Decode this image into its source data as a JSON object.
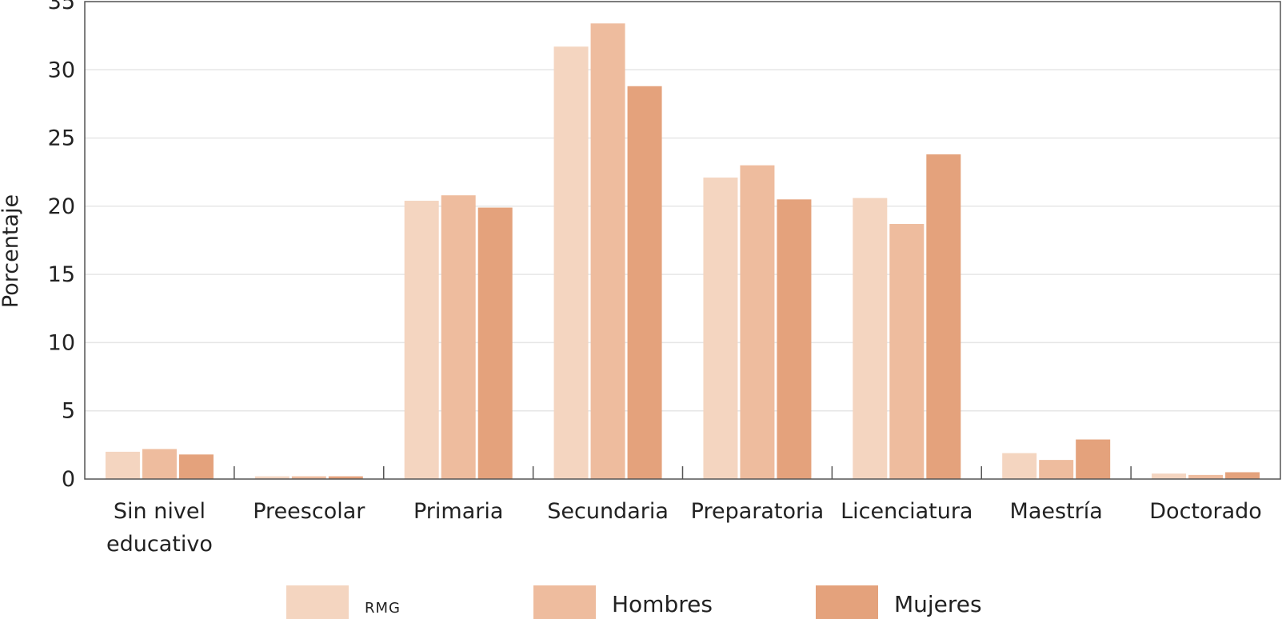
{
  "chart_data": {
    "type": "bar",
    "ylabel": "Porcentaje",
    "xlabel": "",
    "ylim": [
      0,
      35
    ],
    "yticks": [
      0,
      5,
      10,
      15,
      20,
      25,
      30,
      35
    ],
    "grid": true,
    "legend_position": "bottom",
    "categories": [
      [
        "Sin nivel",
        "educativo"
      ],
      [
        "Preescolar"
      ],
      [
        "Primaria"
      ],
      [
        "Secundaria"
      ],
      [
        "Preparatoria"
      ],
      [
        "Licenciatura"
      ],
      [
        "Maestría"
      ],
      [
        "Doctorado"
      ]
    ],
    "series": [
      {
        "name": "RMG",
        "color": "#f4d5c0",
        "values": [
          2.0,
          0.2,
          20.4,
          31.7,
          22.1,
          20.6,
          1.9,
          0.4
        ]
      },
      {
        "name": "Hombres",
        "color": "#eebc9e",
        "values": [
          2.2,
          0.2,
          20.8,
          33.4,
          23.0,
          18.7,
          1.4,
          0.3
        ]
      },
      {
        "name": "Mujeres",
        "color": "#e4a27c",
        "values": [
          1.8,
          0.2,
          19.9,
          28.8,
          20.5,
          23.8,
          2.9,
          0.5
        ]
      }
    ]
  }
}
